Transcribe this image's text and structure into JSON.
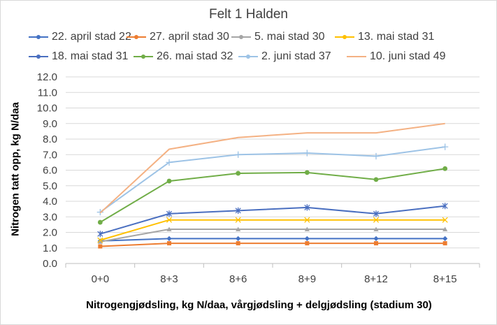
{
  "chart_data": {
    "type": "line",
    "title": "Felt 1 Halden",
    "xlabel": "Nitrogengjødsling, kg N/daa, vårgjødsling + delgjødsling (stadium 30)",
    "ylabel": "Nitrogen tatt opp, kg N/daa",
    "categories": [
      "0+0",
      "8+3",
      "8+6",
      "8+9",
      "8+12",
      "8+15"
    ],
    "ylim": [
      0,
      12
    ],
    "yticks": [
      "0.0",
      "1.0",
      "2.0",
      "3.0",
      "4.0",
      "5.0",
      "6.0",
      "7.0",
      "8.0",
      "9.0",
      "10.0",
      "11.0",
      "12.0"
    ],
    "grid": "horizontal",
    "legend_position": "top",
    "series": [
      {
        "name": "22. april stad 22",
        "color": "#4472c4",
        "marker": "diamond",
        "values": [
          1.45,
          1.6,
          1.6,
          1.6,
          1.6,
          1.6
        ]
      },
      {
        "name": "27. april stad 30",
        "color": "#ed7d31",
        "marker": "square",
        "values": [
          1.1,
          1.3,
          1.3,
          1.3,
          1.3,
          1.3
        ]
      },
      {
        "name": "5. mai stad 30",
        "color": "#a5a5a5",
        "marker": "triangle",
        "values": [
          1.4,
          2.2,
          2.2,
          2.2,
          2.2,
          2.2
        ]
      },
      {
        "name": "13. mai stad 31",
        "color": "#ffc000",
        "marker": "x",
        "values": [
          1.5,
          2.8,
          2.8,
          2.8,
          2.8,
          2.8
        ]
      },
      {
        "name": "18. mai stad 31",
        "color": "#4a6fc0",
        "marker": "star",
        "values": [
          1.9,
          3.2,
          3.4,
          3.6,
          3.2,
          3.7
        ]
      },
      {
        "name": "26. mai stad 32",
        "color": "#70ad47",
        "marker": "circle",
        "values": [
          2.65,
          5.3,
          5.8,
          5.85,
          5.4,
          6.1
        ]
      },
      {
        "name": "2. juni stad 37",
        "color": "#9dc3e6",
        "marker": "plus",
        "values": [
          3.3,
          6.5,
          7.0,
          7.1,
          6.9,
          7.5
        ]
      },
      {
        "name": "10. juni stad 49",
        "color": "#f4b183",
        "marker": "none",
        "values": [
          3.25,
          7.35,
          8.1,
          8.4,
          8.4,
          9.0
        ]
      }
    ]
  }
}
